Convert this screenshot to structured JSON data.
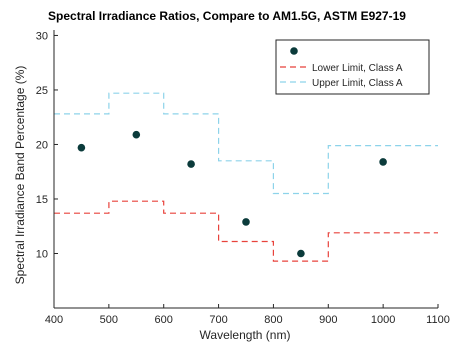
{
  "colors": {
    "point": "#0b3b3b",
    "lower": "#e8423b",
    "upper": "#8dd3ea",
    "axis": "#262626",
    "legend_border": "#262626"
  },
  "chart_data": {
    "type": "scatter",
    "title": "Spectral Irradiance Ratios, Compare to AM1.5G, ASTM E927-19",
    "xlabel": "Wavelength (nm)",
    "ylabel": "Spectral Irradiance Band Percentage (%)",
    "xlim": [
      400,
      1100
    ],
    "ylim": [
      5,
      30.5
    ],
    "xticks": [
      400,
      500,
      600,
      700,
      800,
      900,
      1000,
      1100
    ],
    "yticks": [
      10,
      15,
      20,
      25,
      30
    ],
    "grid": false,
    "legend_position": "top-right",
    "points": {
      "x": [
        450,
        550,
        650,
        750,
        850,
        1000
      ],
      "y": [
        19.7,
        20.9,
        18.2,
        12.9,
        10.0,
        18.4
      ]
    },
    "series": [
      {
        "name": "Lower Limit, Class A",
        "style": "dashed",
        "steps": [
          {
            "x0": 400,
            "x1": 500,
            "y": 13.7
          },
          {
            "x0": 500,
            "x1": 600,
            "y": 14.8
          },
          {
            "x0": 600,
            "x1": 700,
            "y": 13.7
          },
          {
            "x0": 700,
            "x1": 800,
            "y": 11.1
          },
          {
            "x0": 800,
            "x1": 900,
            "y": 9.3
          },
          {
            "x0": 900,
            "x1": 1100,
            "y": 11.9
          }
        ]
      },
      {
        "name": "Upper Limit, Class A",
        "style": "dashed",
        "steps": [
          {
            "x0": 400,
            "x1": 500,
            "y": 22.8
          },
          {
            "x0": 500,
            "x1": 600,
            "y": 24.7
          },
          {
            "x0": 600,
            "x1": 700,
            "y": 22.8
          },
          {
            "x0": 700,
            "x1": 800,
            "y": 18.5
          },
          {
            "x0": 800,
            "x1": 900,
            "y": 15.5
          },
          {
            "x0": 900,
            "x1": 1100,
            "y": 19.9
          }
        ]
      }
    ]
  }
}
